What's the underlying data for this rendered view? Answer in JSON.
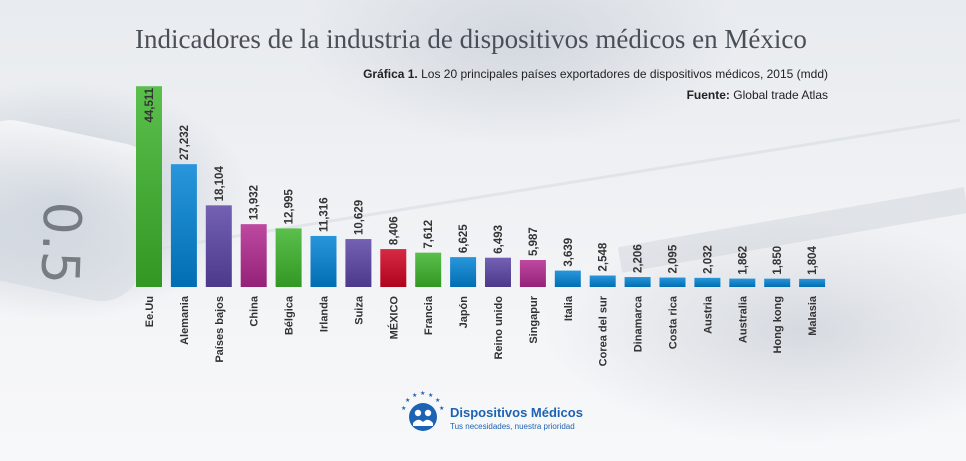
{
  "colors": {
    "green": "#5bbf4c",
    "blue": "#2996dc",
    "purple": "#7461b3",
    "magenta": "#bd4aa0",
    "red": "#d62a45",
    "brand": "#1d63b4"
  },
  "header": {
    "title": "Indicadores de la industria de dispositivos médicos en México",
    "subtitle_strong": "Gráfica 1.",
    "subtitle_text": " Los 20 principales países exportadores de dispositivos médicos, 2015 (mdd)",
    "source_strong": "Fuente:",
    "source_text": " Global trade Atlas"
  },
  "chart_data": {
    "type": "bar",
    "categories": [
      "Ee.Uu",
      "Alemania",
      "Países bajos",
      "China",
      "Bélgica",
      "Irlanda",
      "Suiza",
      "MÉXICO",
      "Francia",
      "Japón",
      "Reino unido",
      "Singapur",
      "Italia",
      "Corea del sur",
      "Dinamarca",
      "Costa rica",
      "Austria",
      "Australia",
      "Hong kong",
      "Malasia"
    ],
    "values": [
      44511,
      27232,
      18104,
      13932,
      12995,
      11316,
      10629,
      8406,
      7612,
      6625,
      6493,
      5987,
      3639,
      2548,
      2206,
      2095,
      2032,
      1862,
      1850,
      1804
    ],
    "value_labels": [
      "44,511",
      "27,232",
      "18,104",
      "13,932",
      "12,995",
      "11,316",
      "10,629",
      "8,406",
      "7,612",
      "6,625",
      "6,493",
      "5,987",
      "3,639",
      "2,548",
      "2,206",
      "2,095",
      "2,032",
      "1,862",
      "1,850",
      "1,804"
    ],
    "bar_colors": [
      "green",
      "blue",
      "purple",
      "magenta",
      "green",
      "blue",
      "purple",
      "red",
      "green",
      "blue",
      "purple",
      "magenta",
      "blue",
      "blue",
      "blue",
      "blue",
      "blue",
      "blue",
      "blue",
      "blue"
    ],
    "highlight_category": "MÉXICO",
    "ylim": [
      0,
      45000
    ],
    "grid": false,
    "legend": "none"
  },
  "logo": {
    "name": "Dispositivos Médicos",
    "tagline": "Tus necesidades, nuestra prioridad"
  }
}
